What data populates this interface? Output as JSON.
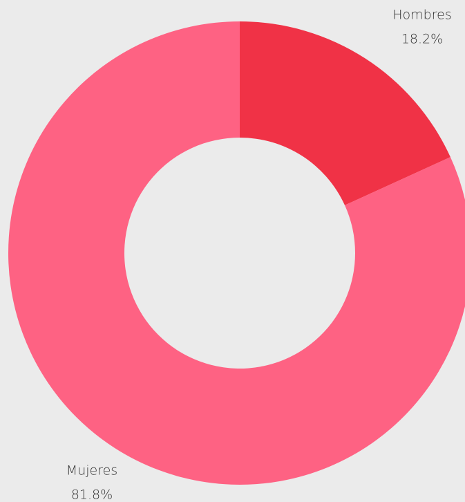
{
  "chart_data": {
    "type": "pie",
    "categories": [
      "Hombres",
      "Mujeres"
    ],
    "values": [
      18.2,
      81.8
    ],
    "value_labels": [
      "18.2%",
      "81.8%"
    ],
    "colors": [
      "#f03246",
      "#fe6283"
    ]
  }
}
